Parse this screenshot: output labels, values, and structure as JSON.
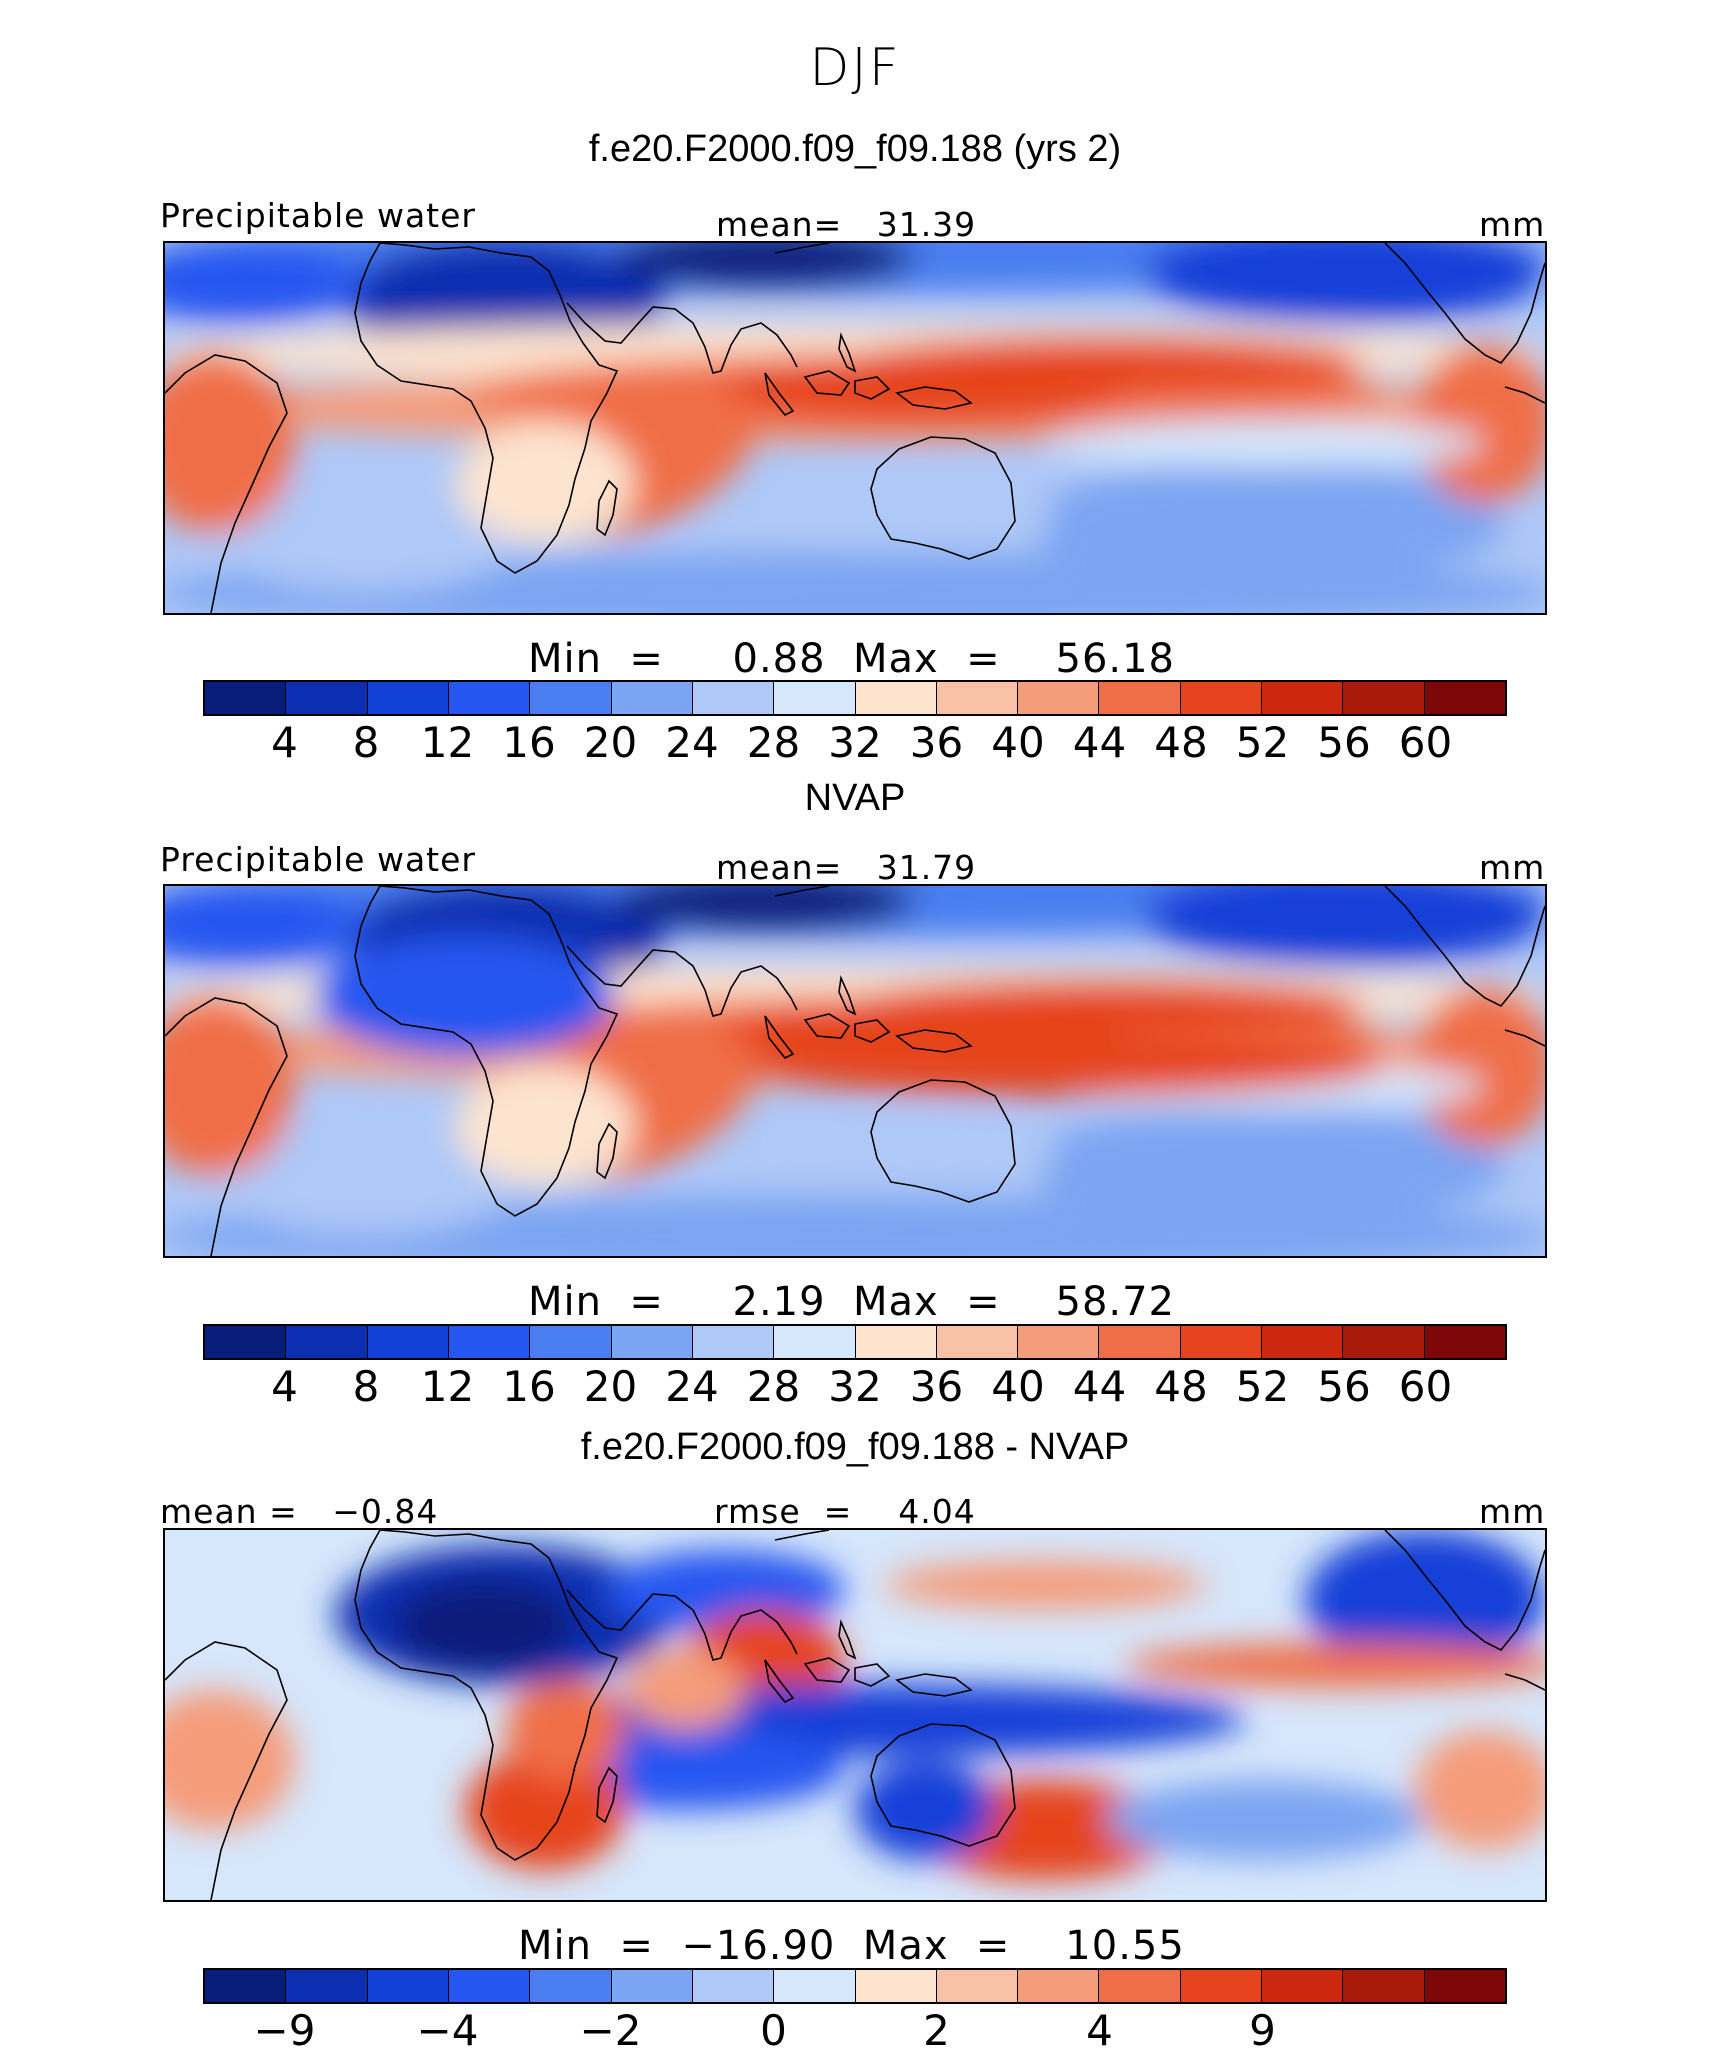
{
  "season": "DJF",
  "chart_data": [
    {
      "type": "heatmap",
      "title": "f.e20.F2000.f09_f09.188 (yrs 2)",
      "left_label": "Precipitable water",
      "center_label": "mean=   31.39",
      "right_label": "mm",
      "minmax": "Min  =     0.88  Max  =    56.18",
      "min": 0.88,
      "max": 56.18,
      "mean": 31.39,
      "colorbar_ticks": [
        "4",
        "8",
        "12",
        "16",
        "20",
        "24",
        "28",
        "32",
        "36",
        "40",
        "44",
        "48",
        "52",
        "56",
        "60"
      ],
      "colorbar_colors": [
        "#081d7a",
        "#0b2fb0",
        "#1241d8",
        "#2556f0",
        "#4a7ef0",
        "#7ba4f2",
        "#aec8f7",
        "#d6e6fb",
        "#fde4cf",
        "#f9c2a6",
        "#f59c7a",
        "#f06e47",
        "#e6441f",
        "#cc2810",
        "#a81a0a",
        "#7d0606"
      ]
    },
    {
      "type": "heatmap",
      "title": "NVAP",
      "left_label": "Precipitable water",
      "center_label": "mean=   31.79",
      "right_label": "mm",
      "minmax": "Min  =     2.19  Max  =    58.72",
      "min": 2.19,
      "max": 58.72,
      "mean": 31.79,
      "colorbar_ticks": [
        "4",
        "8",
        "12",
        "16",
        "20",
        "24",
        "28",
        "32",
        "36",
        "40",
        "44",
        "48",
        "52",
        "56",
        "60"
      ],
      "colorbar_colors": [
        "#081d7a",
        "#0b2fb0",
        "#1241d8",
        "#2556f0",
        "#4a7ef0",
        "#7ba4f2",
        "#aec8f7",
        "#d6e6fb",
        "#fde4cf",
        "#f9c2a6",
        "#f59c7a",
        "#f06e47",
        "#e6441f",
        "#cc2810",
        "#a81a0a",
        "#7d0606"
      ]
    },
    {
      "type": "heatmap",
      "title": "f.e20.F2000.f09_f09.188 - NVAP",
      "left_label": "mean =   −0.84",
      "center_label": "rmse  =    4.04",
      "right_label": "mm",
      "minmax": "Min  =  −16.90  Max  =    10.55",
      "min": -16.9,
      "max": 10.55,
      "mean": -0.84,
      "rmse": 4.04,
      "colorbar_ticks": [
        "−9",
        "",
        "−4",
        "",
        "−2",
        "",
        "0",
        "",
        "2",
        "",
        "4",
        "",
        "9",
        "",
        "",
        ""
      ],
      "colorbar_tick_positions": [
        1,
        3,
        5,
        7,
        9,
        11,
        13
      ],
      "colorbar_tick_labels": [
        "−9",
        "−4",
        "−2",
        "0",
        "2",
        "4",
        "9"
      ],
      "colorbar_colors": [
        "#081d7a",
        "#0b2fb0",
        "#1241d8",
        "#2556f0",
        "#4a7ef0",
        "#7ba4f2",
        "#aec8f7",
        "#d6e6fb",
        "#fde4cf",
        "#f9c2a6",
        "#f59c7a",
        "#f06e47",
        "#e6441f",
        "#cc2810",
        "#a81a0a",
        "#7d0606"
      ]
    }
  ]
}
